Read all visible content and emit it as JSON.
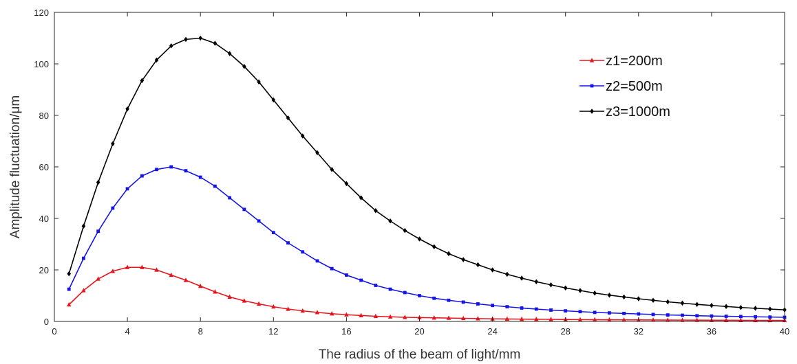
{
  "chart_data": {
    "type": "line",
    "title": "",
    "xlabel": "The radius of the beam of light/mm",
    "ylabel": "Amplitude fluctuation/μm",
    "xlim": [
      0,
      40
    ],
    "ylim": [
      0,
      120
    ],
    "xticks": [
      0,
      4,
      8,
      12,
      16,
      20,
      24,
      28,
      32,
      36,
      40
    ],
    "yticks": [
      0,
      20,
      40,
      60,
      80,
      100,
      120
    ],
    "grid": false,
    "legend_position": "top-right",
    "series": [
      {
        "name": "z1=200m",
        "color": "#e8141c",
        "marker": "triangle",
        "x": [
          0.8,
          1.6,
          2.4,
          3.2,
          4.0,
          4.8,
          5.6,
          6.4,
          7.2,
          8.0,
          8.8,
          9.6,
          10.4,
          11.2,
          12.0,
          12.8,
          13.6,
          14.4,
          15.2,
          16.0,
          16.8,
          17.6,
          18.4,
          19.2,
          20.0,
          20.8,
          21.6,
          22.4,
          23.2,
          24.0,
          24.8,
          25.6,
          26.4,
          27.2,
          28.0,
          28.8,
          29.6,
          30.4,
          31.2,
          32.0,
          32.8,
          33.6,
          34.4,
          35.2,
          36.0,
          36.8,
          37.6,
          38.4,
          39.2,
          40.0
        ],
        "y": [
          6.5,
          12.0,
          16.5,
          19.5,
          21.0,
          21.0,
          20.0,
          18.0,
          16.0,
          13.7,
          11.5,
          9.5,
          8.0,
          6.8,
          5.7,
          4.8,
          4.1,
          3.5,
          3.0,
          2.6,
          2.3,
          2.0,
          1.8,
          1.6,
          1.5,
          1.4,
          1.3,
          1.2,
          1.1,
          1.0,
          0.95,
          0.9,
          0.85,
          0.8,
          0.75,
          0.7,
          0.65,
          0.62,
          0.6,
          0.57,
          0.55,
          0.52,
          0.5,
          0.48,
          0.46,
          0.44,
          0.42,
          0.4,
          0.39,
          0.38
        ]
      },
      {
        "name": "z2=500m",
        "color": "#1414e6",
        "marker": "square",
        "x": [
          0.8,
          1.6,
          2.4,
          3.2,
          4.0,
          4.8,
          5.6,
          6.4,
          7.2,
          8.0,
          8.8,
          9.6,
          10.4,
          11.2,
          12.0,
          12.8,
          13.6,
          14.4,
          15.2,
          16.0,
          16.8,
          17.6,
          18.4,
          19.2,
          20.0,
          20.8,
          21.6,
          22.4,
          23.2,
          24.0,
          24.8,
          25.6,
          26.4,
          27.2,
          28.0,
          28.8,
          29.6,
          30.4,
          31.2,
          32.0,
          32.8,
          33.6,
          34.4,
          35.2,
          36.0,
          36.8,
          37.6,
          38.4,
          39.2,
          40.0
        ],
        "y": [
          12.5,
          24.5,
          35.0,
          44.0,
          51.5,
          56.5,
          59.0,
          60.0,
          58.5,
          56.0,
          52.5,
          48.0,
          43.5,
          39.0,
          34.5,
          30.5,
          27.0,
          23.5,
          20.5,
          18.0,
          16.0,
          14.0,
          12.5,
          11.2,
          10.0,
          9.0,
          8.2,
          7.5,
          6.8,
          6.2,
          5.7,
          5.2,
          4.8,
          4.4,
          4.1,
          3.8,
          3.5,
          3.3,
          3.1,
          2.9,
          2.7,
          2.5,
          2.4,
          2.2,
          2.1,
          2.0,
          1.9,
          1.8,
          1.7,
          1.6
        ]
      },
      {
        "name": "z3=1000m",
        "color": "#000000",
        "marker": "diamond",
        "x": [
          0.8,
          1.6,
          2.4,
          3.2,
          4.0,
          4.8,
          5.6,
          6.4,
          7.2,
          8.0,
          8.8,
          9.6,
          10.4,
          11.2,
          12.0,
          12.8,
          13.6,
          14.4,
          15.2,
          16.0,
          16.8,
          17.6,
          18.4,
          19.2,
          20.0,
          20.8,
          21.6,
          22.4,
          23.2,
          24.0,
          24.8,
          25.6,
          26.4,
          27.2,
          28.0,
          28.8,
          29.6,
          30.4,
          31.2,
          32.0,
          32.8,
          33.6,
          34.4,
          35.2,
          36.0,
          36.8,
          37.6,
          38.4,
          39.2,
          40.0
        ],
        "y": [
          18.5,
          37.0,
          54.0,
          69.0,
          82.5,
          93.5,
          101.5,
          107.0,
          109.5,
          110.0,
          108.0,
          104.0,
          99.0,
          93.0,
          86.0,
          79.0,
          72.0,
          65.5,
          59.0,
          53.5,
          48.0,
          43.0,
          39.0,
          35.3,
          32.0,
          29.0,
          26.3,
          24.0,
          22.0,
          20.0,
          18.3,
          16.8,
          15.4,
          14.2,
          13.0,
          12.0,
          11.0,
          10.2,
          9.5,
          8.8,
          8.2,
          7.6,
          7.1,
          6.6,
          6.2,
          5.8,
          5.4,
          5.1,
          4.8,
          4.5
        ]
      }
    ]
  }
}
